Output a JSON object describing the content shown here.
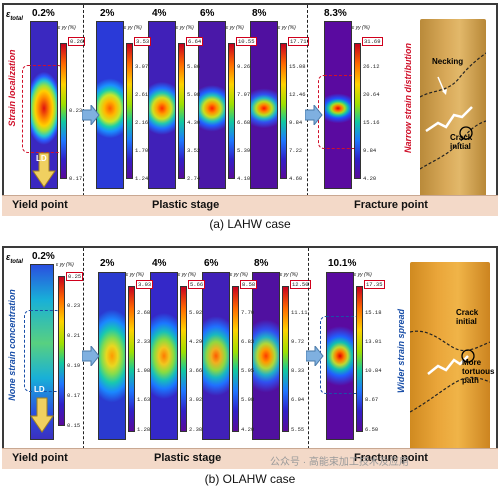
{
  "panel_a": {
    "etotal_label": "ε",
    "etotal_sub": "total",
    "strain_values": [
      "0.2%",
      "2%",
      "4%",
      "6%",
      "8%",
      "8.3%"
    ],
    "colorbar_title": "ε yy (%)",
    "colorbar_ticks": [
      [
        "0.26",
        "0.23",
        "0.17"
      ],
      [
        "3.53",
        "3.07",
        "2.61",
        "2.16",
        "1.70",
        "1.24"
      ],
      [
        "6.64",
        "5.86",
        "5.08",
        "4.30",
        "3.52",
        "2.74"
      ],
      [
        "10.55",
        "9.26",
        "7.97",
        "6.68",
        "5.39",
        "4.10"
      ],
      [
        "17.71",
        "15.08",
        "12.46",
        "9.84",
        "7.22",
        "4.60"
      ],
      [
        "31.69",
        "26.12",
        "20.64",
        "15.16",
        "9.84",
        "4.20"
      ]
    ],
    "left_side_label": "Strain localization",
    "right_side_label": "Narrow strain distribution",
    "annotations": {
      "necking": "Necking",
      "crack": "Crack\ninitial"
    },
    "ld_label": "LD",
    "stages": [
      "Yield point",
      "Plastic stage",
      "Fracture point"
    ],
    "caption": "(a) LAHW case"
  },
  "panel_b": {
    "etotal_label": "ε",
    "etotal_sub": "total",
    "strain_values": [
      "0.2%",
      "2%",
      "4%",
      "6%",
      "8%",
      "10.1%"
    ],
    "colorbar_title": "ε yy (%)",
    "colorbar_ticks": [
      [
        "0.25",
        "0.23",
        "0.21",
        "0.19",
        "0.17",
        "0.15"
      ],
      [
        "3.03",
        "2.68",
        "2.33",
        "1.98",
        "1.63",
        "1.28"
      ],
      [
        "5.66",
        "5.02",
        "4.29",
        "3.66",
        "3.02",
        "2.38"
      ],
      [
        "8.58",
        "7.70",
        "6.83",
        "5.95",
        "5.08",
        "4.20"
      ],
      [
        "12.50",
        "11.11",
        "9.72",
        "8.33",
        "6.94",
        "5.55"
      ],
      [
        "17.35",
        "15.18",
        "13.01",
        "10.84",
        "8.67",
        "6.50"
      ]
    ],
    "left_side_label": "None strain concentration",
    "right_side_label": "Wider strain spread",
    "annotations": {
      "crack": "Crack\ninitial",
      "tortuous": "More\ntortuous\npath"
    },
    "ld_label": "LD",
    "stages": [
      "Yield point",
      "Plastic stage",
      "Fracture point"
    ],
    "caption": "(b) OLAHW case"
  },
  "watermark": "公众号 · 高能束加工技术及应用"
}
